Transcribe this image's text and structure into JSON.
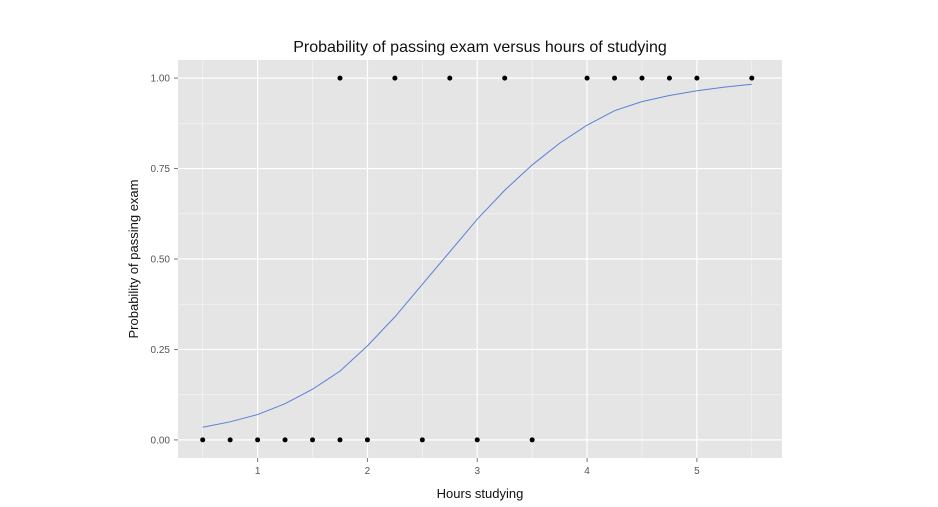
{
  "chart_data": {
    "type": "scatter",
    "title": "Probability of passing exam versus hours of studying",
    "xlabel": "Hours studying",
    "ylabel": "Probability of passing exam",
    "xlim": [
      0.275,
      5.775
    ],
    "ylim": [
      -0.05,
      1.05
    ],
    "x_ticks": [
      1,
      2,
      3,
      4,
      5
    ],
    "x_tick_labels": [
      "1",
      "2",
      "3",
      "4",
      "5"
    ],
    "y_ticks": [
      0,
      0.25,
      0.5,
      0.75,
      1.0
    ],
    "y_tick_labels": [
      "0.00",
      "0.25",
      "0.50",
      "0.75",
      "1.00"
    ],
    "grid": true,
    "points": [
      {
        "x": 0.5,
        "y": 0
      },
      {
        "x": 0.75,
        "y": 0
      },
      {
        "x": 1.0,
        "y": 0
      },
      {
        "x": 1.25,
        "y": 0
      },
      {
        "x": 1.5,
        "y": 0
      },
      {
        "x": 1.75,
        "y": 0
      },
      {
        "x": 2.0,
        "y": 0
      },
      {
        "x": 2.5,
        "y": 0
      },
      {
        "x": 3.0,
        "y": 0
      },
      {
        "x": 3.5,
        "y": 0
      },
      {
        "x": 1.75,
        "y": 1
      },
      {
        "x": 2.25,
        "y": 1
      },
      {
        "x": 2.75,
        "y": 1
      },
      {
        "x": 3.25,
        "y": 1
      },
      {
        "x": 4.0,
        "y": 1
      },
      {
        "x": 4.25,
        "y": 1
      },
      {
        "x": 4.5,
        "y": 1
      },
      {
        "x": 4.75,
        "y": 1
      },
      {
        "x": 5.0,
        "y": 1
      },
      {
        "x": 5.5,
        "y": 1
      }
    ],
    "fit_curve": {
      "x": [
        0.5,
        0.75,
        1.0,
        1.25,
        1.5,
        1.75,
        2.0,
        2.25,
        2.5,
        2.75,
        3.0,
        3.25,
        3.5,
        3.75,
        4.0,
        4.25,
        4.5,
        4.75,
        5.0,
        5.25,
        5.5
      ],
      "y": [
        0.035,
        0.05,
        0.07,
        0.1,
        0.14,
        0.19,
        0.26,
        0.34,
        0.43,
        0.52,
        0.61,
        0.69,
        0.76,
        0.82,
        0.87,
        0.91,
        0.935,
        0.952,
        0.965,
        0.975,
        0.983
      ]
    },
    "colors": {
      "panel": "#e5e5e5",
      "grid": "#ffffff",
      "point": "#000000",
      "curve": "#5b7fd6"
    }
  }
}
